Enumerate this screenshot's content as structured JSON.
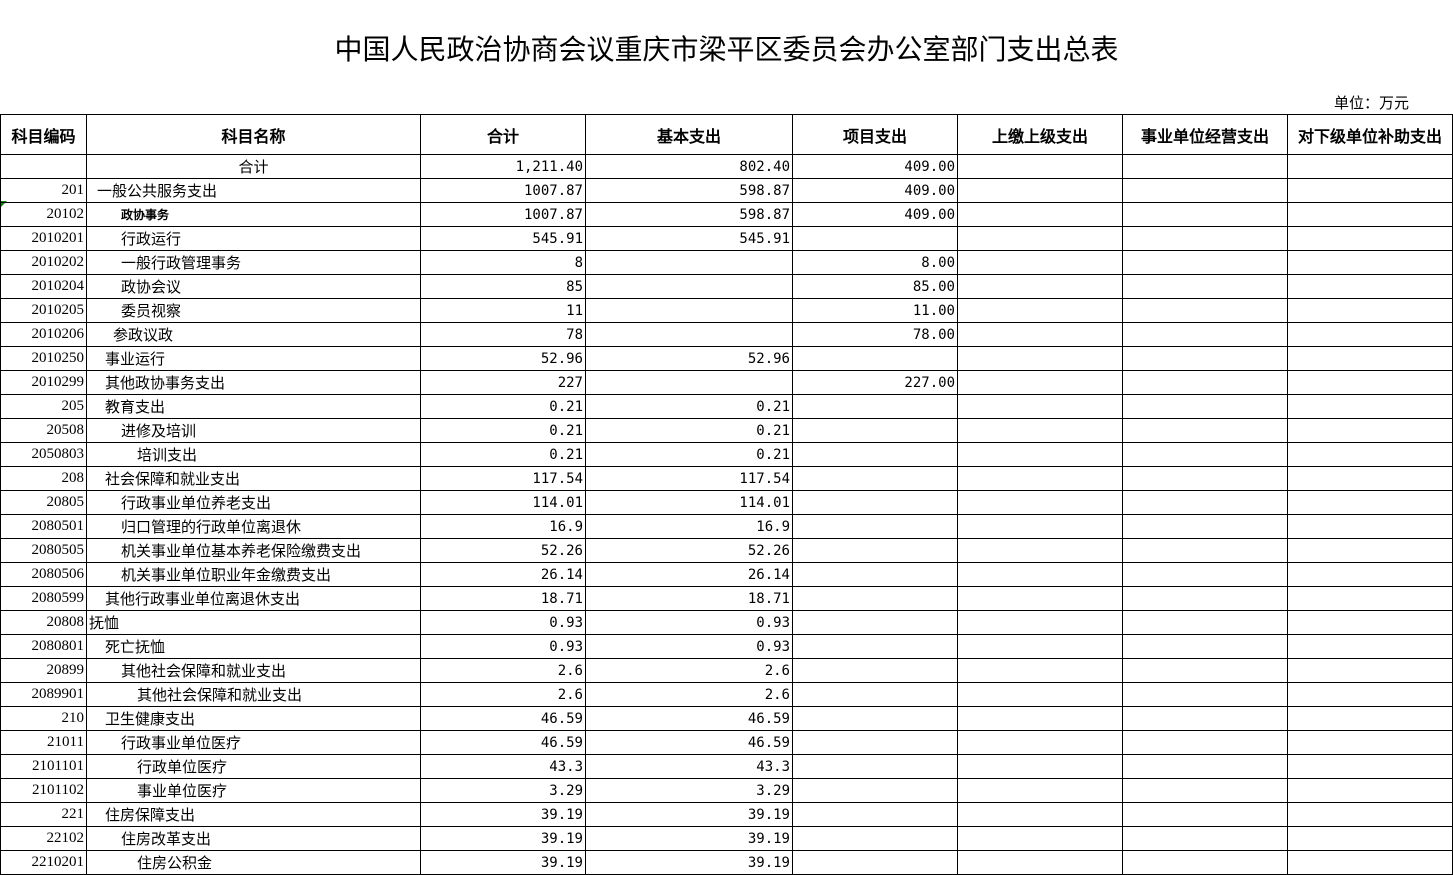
{
  "title": "中国人民政治协商会议重庆市梁平区委员会办公室部门支出总表",
  "unit": "单位：万元",
  "headers": [
    "科目编码",
    "科目名称",
    "合计",
    "基本支出",
    "项目支出",
    "上缴上级支出",
    "事业单位经营支出",
    "对下级单位补助支出"
  ],
  "rows": [
    {
      "code": "",
      "name": "合计",
      "total": "1,211.40",
      "basic": "802.40",
      "project": "409.00"
    },
    {
      "code": "201",
      "name": "一般公共服务支出",
      "total": "1007.87",
      "basic": "598.87",
      "project": "409.00"
    },
    {
      "code": "20102",
      "name": "政协事务",
      "total": "1007.87",
      "basic": "598.87",
      "project": "409.00"
    },
    {
      "code": "2010201",
      "name": "行政运行",
      "total": "545.91",
      "basic": "545.91",
      "project": ""
    },
    {
      "code": "2010202",
      "name": "一般行政管理事务",
      "total": "8",
      "basic": "",
      "project": "8.00"
    },
    {
      "code": "2010204",
      "name": "政协会议",
      "total": "85",
      "basic": "",
      "project": "85.00"
    },
    {
      "code": "2010205",
      "name": "委员视察",
      "total": "11",
      "basic": "",
      "project": "11.00"
    },
    {
      "code": "2010206",
      "name": "参政议政",
      "total": "78",
      "basic": "",
      "project": "78.00"
    },
    {
      "code": "2010250",
      "name": "事业运行",
      "total": "52.96",
      "basic": "52.96",
      "project": ""
    },
    {
      "code": "2010299",
      "name": "其他政协事务支出",
      "total": "227",
      "basic": "",
      "project": "227.00"
    },
    {
      "code": "205",
      "name": "教育支出",
      "total": "0.21",
      "basic": "0.21",
      "project": ""
    },
    {
      "code": "20508",
      "name": "进修及培训",
      "total": "0.21",
      "basic": "0.21",
      "project": ""
    },
    {
      "code": "2050803",
      "name": "培训支出",
      "total": "0.21",
      "basic": "0.21",
      "project": ""
    },
    {
      "code": "208",
      "name": "社会保障和就业支出",
      "total": "117.54",
      "basic": "117.54",
      "project": ""
    },
    {
      "code": "20805",
      "name": "行政事业单位养老支出",
      "total": "114.01",
      "basic": "114.01",
      "project": ""
    },
    {
      "code": "2080501",
      "name": "归口管理的行政单位离退休",
      "total": "16.9",
      "basic": "16.9",
      "project": ""
    },
    {
      "code": "2080505",
      "name": "机关事业单位基本养老保险缴费支出",
      "total": "52.26",
      "basic": "52.26",
      "project": ""
    },
    {
      "code": "2080506",
      "name": "机关事业单位职业年金缴费支出",
      "total": "26.14",
      "basic": "26.14",
      "project": ""
    },
    {
      "code": "2080599",
      "name": "其他行政事业单位离退休支出",
      "total": "18.71",
      "basic": "18.71",
      "project": ""
    },
    {
      "code": "20808",
      "name": "抚恤",
      "total": "0.93",
      "basic": "0.93",
      "project": ""
    },
    {
      "code": "2080801",
      "name": "死亡抚恤",
      "total": "0.93",
      "basic": "0.93",
      "project": ""
    },
    {
      "code": "20899",
      "name": "其他社会保障和就业支出",
      "total": "2.6",
      "basic": "2.6",
      "project": ""
    },
    {
      "code": "2089901",
      "name": "其他社会保障和就业支出",
      "total": "2.6",
      "basic": "2.6",
      "project": ""
    },
    {
      "code": "210",
      "name": "卫生健康支出",
      "total": "46.59",
      "basic": "46.59",
      "project": ""
    },
    {
      "code": "21011",
      "name": "行政事业单位医疗",
      "total": "46.59",
      "basic": "46.59",
      "project": ""
    },
    {
      "code": "2101101",
      "name": "行政单位医疗",
      "total": "43.3",
      "basic": "43.3",
      "project": ""
    },
    {
      "code": "2101102",
      "name": "事业单位医疗",
      "total": "3.29",
      "basic": "3.29",
      "project": ""
    },
    {
      "code": "221",
      "name": "住房保障支出",
      "total": "39.19",
      "basic": "39.19",
      "project": ""
    },
    {
      "code": "22102",
      "name": "住房改革支出",
      "total": "39.19",
      "basic": "39.19",
      "project": ""
    },
    {
      "code": "2210201",
      "name": "住房公积金",
      "total": "39.19",
      "basic": "39.19",
      "project": ""
    }
  ]
}
